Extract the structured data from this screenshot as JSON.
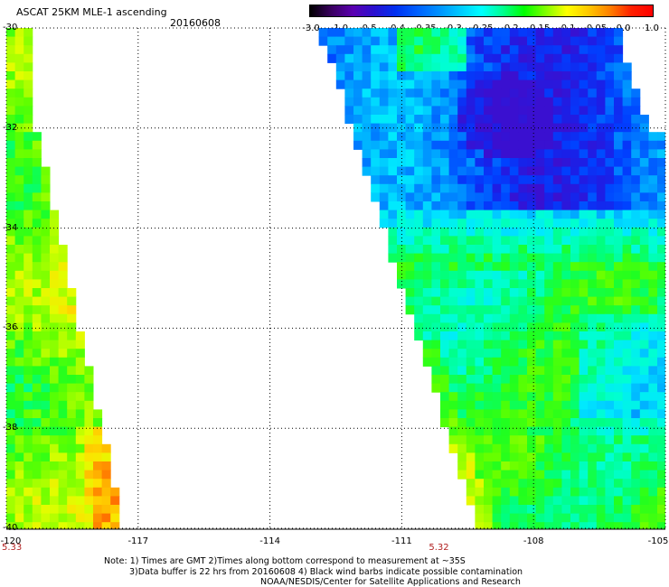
{
  "header": {
    "title": "ASCAT 25KM MLE-1 ascending",
    "date": "20160608"
  },
  "colorbar": {
    "ticks": [
      "-3.0",
      "-1.0",
      "-0.5",
      "-0.4",
      "-0.35",
      "-0.3",
      "-0.25",
      "-0.2",
      "-0.15",
      "-0.1",
      "-0.05",
      "0.0",
      "1.0"
    ],
    "colors": [
      "#000000",
      "#3a0060",
      "#5a00b0",
      "#2a10d0",
      "#0030f0",
      "#0060ff",
      "#0090ff",
      "#00c8ff",
      "#00ffff",
      "#00ff90",
      "#00ff00",
      "#80ff00",
      "#ffff00",
      "#ffc800",
      "#ff8000",
      "#ff2000",
      "#ff0000"
    ]
  },
  "map": {
    "lat_labels": [
      "-30",
      "-32",
      "-34",
      "-36",
      "-38",
      "-40"
    ],
    "lon_labels": [
      "-120",
      "-117",
      "-114",
      "-111",
      "-108",
      "-105"
    ],
    "lat_range": [
      -40,
      -30
    ],
    "lon_range": [
      -120,
      -105
    ],
    "time_labels": [
      "5.33",
      "5.32"
    ],
    "time_label_lons": [
      -120,
      -111
    ]
  },
  "notes": {
    "line1": "Note: 1) Times are GMT 2)Times along bottom correspond to measurement at ~35S",
    "line2": "3)Data buffer is 22 hrs from 20160608 4) Black wind barbs indicate possible contamination",
    "line3": "NOAA/NESDIS/Center for Satellite Applications and Research"
  }
}
